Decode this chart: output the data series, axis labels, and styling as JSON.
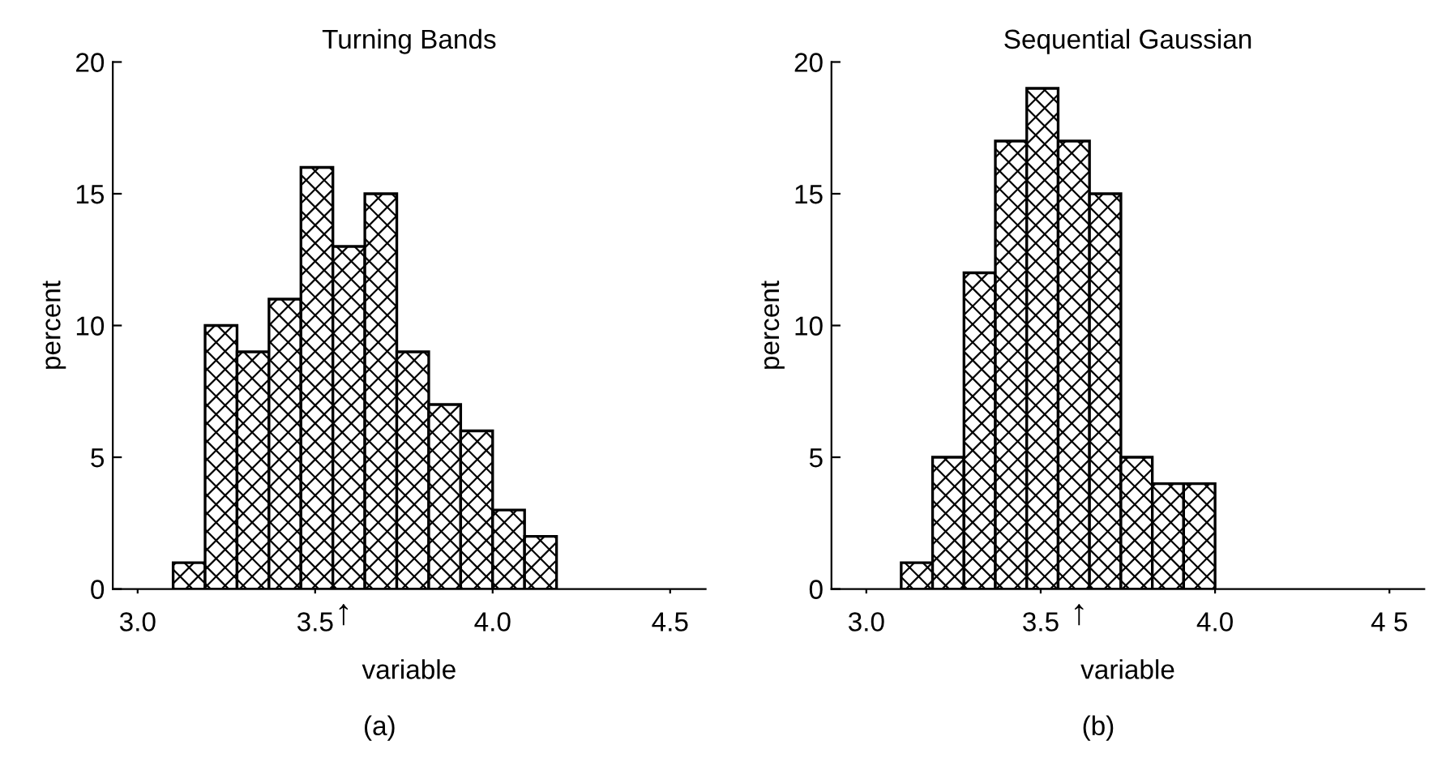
{
  "chart_data": [
    {
      "type": "histogram",
      "title": "Turning Bands",
      "xlabel": "variable",
      "ylabel": "percent",
      "color": "#000000",
      "bins": [
        3.1,
        3.19,
        3.28,
        3.37,
        3.46,
        3.55,
        3.64,
        3.73,
        3.82,
        3.91,
        4.0,
        4.09,
        4.18
      ],
      "values": [
        1,
        10,
        9,
        11,
        16,
        13,
        15,
        9,
        7,
        6,
        3,
        2
      ],
      "xlim": [
        2.93,
        4.6
      ],
      "xticks": [
        {
          "value": 3.0,
          "label": "3.0"
        },
        {
          "value": 3.5,
          "label": "3.5"
        },
        {
          "value": 4.0,
          "label": "4.0"
        },
        {
          "value": 4.5,
          "label": "4.5"
        }
      ],
      "ylim": [
        0,
        20
      ],
      "yticks": [
        0,
        5,
        10,
        15,
        20
      ],
      "annotations": [
        {
          "text": "↑",
          "x": 3.58,
          "y": 0
        },
        "(a)"
      ]
    },
    {
      "type": "histogram",
      "title": "Sequential Gaussian",
      "xlabel": "variable",
      "ylabel": "percent",
      "color": "#000000",
      "bins": [
        3.1,
        3.19,
        3.28,
        3.37,
        3.46,
        3.55,
        3.64,
        3.73,
        3.82,
        3.91,
        4.0
      ],
      "values": [
        1,
        5,
        12,
        17,
        19,
        17,
        15,
        5,
        4,
        4
      ],
      "xlim": [
        2.9,
        4.6
      ],
      "xticks": [
        {
          "value": 3.0,
          "label": "3.0"
        },
        {
          "value": 3.5,
          "label": "3.5"
        },
        {
          "value": 4.0,
          "label": "4.0"
        },
        {
          "value": 4.5,
          "label": "4 5"
        }
      ],
      "ylim": [
        0,
        20
      ],
      "yticks": [
        0,
        5,
        10,
        15,
        20
      ],
      "annotations": [
        {
          "text": "↑",
          "x": 3.61,
          "y": 0
        },
        "(b)"
      ]
    }
  ]
}
